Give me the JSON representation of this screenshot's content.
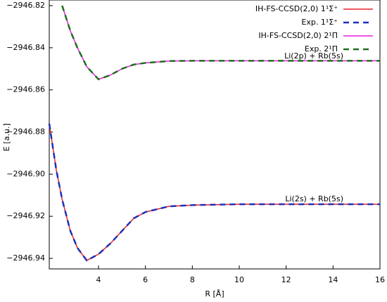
{
  "chart_data": {
    "type": "line",
    "xlabel": "R [Å]",
    "ylabel": "E [a.u.]",
    "x": [
      1.9,
      2.2,
      2.45,
      2.8,
      3.1,
      3.5,
      4,
      4.5,
      5,
      5.5,
      6,
      7,
      8,
      10,
      12,
      14,
      16
    ],
    "series": [
      {
        "name": "IH-FS-CCSD(2,0) 1¹Σ⁺",
        "color": "#e8222a",
        "dashed": false,
        "values": [
          -2946.876,
          -2946.898,
          -2946.912,
          -2946.927,
          -2946.935,
          -2946.941,
          -2946.938,
          -2946.933,
          -2946.927,
          -2946.921,
          -2946.918,
          -2946.9153,
          -2946.9147,
          -2946.9143,
          -2946.9143,
          -2946.9143,
          -2946.9143
        ]
      },
      {
        "name": "Exp. 1¹Σ⁺",
        "color": "#1f2fb8",
        "dashed": true,
        "values": [
          -2946.876,
          -2946.898,
          -2946.912,
          -2946.927,
          -2946.935,
          -2946.941,
          -2946.938,
          -2946.933,
          -2946.927,
          -2946.921,
          -2946.918,
          -2946.9153,
          -2946.9147,
          -2946.9143,
          -2946.9143,
          -2946.9143,
          -2946.9143
        ]
      },
      {
        "name": "IH-FS-CCSD(2,0) 2¹Π",
        "color": "#e81ee0",
        "dashed": false,
        "values": [
          null,
          null,
          -2946.82,
          -2946.832,
          -2946.84,
          -2946.849,
          -2946.855,
          -2946.853,
          -2946.85,
          -2946.848,
          -2946.8472,
          -2946.8463,
          -2946.8462,
          -2946.8462,
          -2946.8462,
          -2946.8462,
          -2946.8462
        ]
      },
      {
        "name": "Exp. 2¹Π",
        "color": "#1e6e1e",
        "dashed": true,
        "values": [
          null,
          null,
          -2946.82,
          -2946.832,
          -2946.84,
          -2946.849,
          -2946.855,
          -2946.853,
          -2946.85,
          -2946.848,
          -2946.8472,
          -2946.8463,
          -2946.8462,
          -2946.8462,
          -2946.8462,
          -2946.8462,
          -2946.8462
        ]
      }
    ],
    "annotations": [
      "Li(2p) + Rb(5s)",
      "Li(2s) + Rb(5s)"
    ],
    "xlim": [
      1.9,
      16
    ],
    "xticks": [
      4,
      6,
      8,
      10,
      12,
      14,
      16
    ],
    "ylim": [
      -2946.945,
      -2946.82
    ],
    "yticks": [
      {
        "value": -2946.94,
        "label": "−2946.94"
      },
      {
        "value": -2946.92,
        "label": "−2946.92"
      },
      {
        "value": -2946.9,
        "label": "−2946.90"
      },
      {
        "value": -2946.88,
        "label": "−2946.88"
      },
      {
        "value": -2946.86,
        "label": "−2946.86"
      },
      {
        "value": -2946.84,
        "label": "−2946.84"
      },
      {
        "value": -2946.82,
        "label": "−2946.82"
      }
    ],
    "legend": "upper right",
    "grid": false
  }
}
